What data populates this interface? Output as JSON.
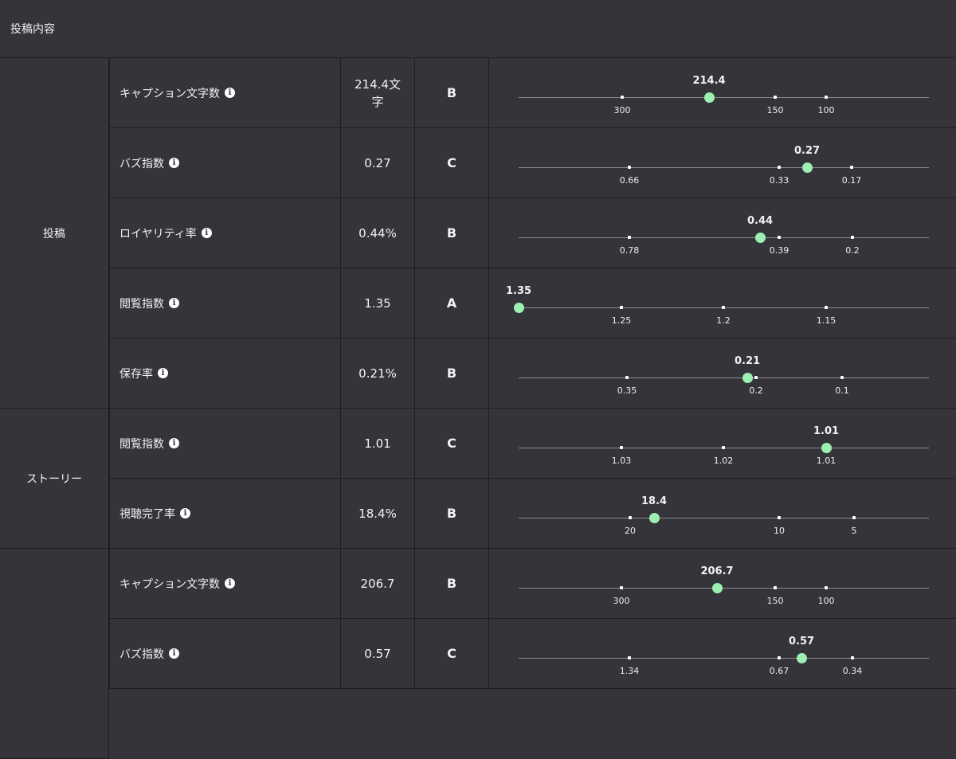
{
  "header": {
    "title": "投稿内容"
  },
  "accent_color": "#9ef0b2",
  "groups": [
    {
      "label": "投稿"
    },
    {
      "label": "ストーリー"
    },
    {
      "label": ""
    }
  ],
  "rows": [
    {
      "metric": "キャプション文字数",
      "value": "214.4文字",
      "grade": "B",
      "ticks": [
        "300",
        "150",
        "100"
      ],
      "marker": "214.4"
    },
    {
      "metric": "バズ指数",
      "value": "0.27",
      "grade": "C",
      "ticks": [
        "0.66",
        "0.33",
        "0.17"
      ],
      "marker": "0.27"
    },
    {
      "metric": "ロイヤリティ率",
      "value": "0.44%",
      "grade": "B",
      "ticks": [
        "0.78",
        "0.39",
        "0.2"
      ],
      "marker": "0.44"
    },
    {
      "metric": "閲覧指数",
      "value": "1.35",
      "grade": "A",
      "ticks": [
        "1.25",
        "1.2",
        "1.15"
      ],
      "marker": "1.35"
    },
    {
      "metric": "保存率",
      "value": "0.21%",
      "grade": "B",
      "ticks": [
        "0.35",
        "0.2",
        "0.1"
      ],
      "marker": "0.21"
    },
    {
      "metric": "閲覧指数",
      "value": "1.01",
      "grade": "C",
      "ticks": [
        "1.03",
        "1.02",
        "1.01"
      ],
      "marker": "1.01"
    },
    {
      "metric": "視聴完了率",
      "value": "18.4%",
      "grade": "B",
      "ticks": [
        "20",
        "10",
        "5"
      ],
      "marker": "18.4"
    },
    {
      "metric": "キャプション文字数",
      "value": "206.7",
      "grade": "B",
      "ticks": [
        "300",
        "150",
        "100"
      ],
      "marker": "206.7"
    },
    {
      "metric": "バズ指数",
      "value": "0.57",
      "grade": "C",
      "ticks": [
        "1.34",
        "0.67",
        "0.34"
      ],
      "marker": "0.57"
    }
  ]
}
